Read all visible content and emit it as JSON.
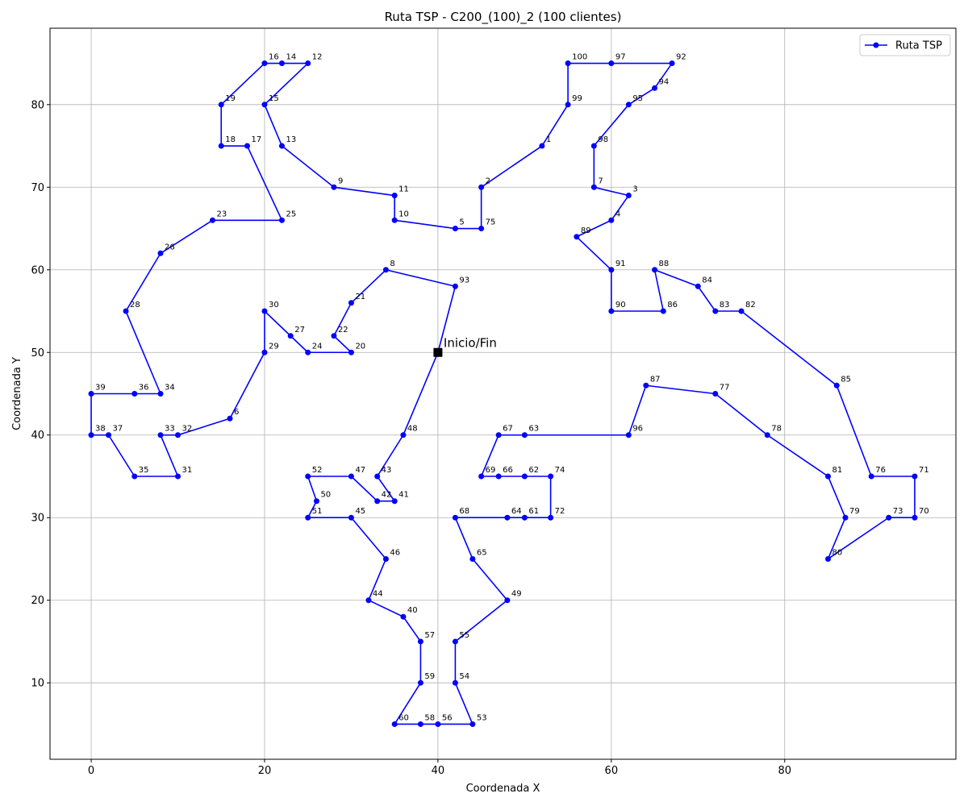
{
  "chart_data": {
    "type": "line",
    "title": "Ruta TSP - C200_(100)_2 (100 clientes)",
    "xlabel": "Coordenada X",
    "ylabel": "Coordenada Y",
    "xlim": [
      -4.75,
      99.75
    ],
    "ylim": [
      0.75,
      89.25
    ],
    "xticks": [
      0,
      20,
      40,
      60,
      80
    ],
    "yticks": [
      10,
      20,
      30,
      40,
      50,
      60,
      70,
      80
    ],
    "grid": true,
    "legend": {
      "position": "top-right",
      "entries": [
        "Ruta TSP"
      ]
    },
    "colors": {
      "route": "#0000ff",
      "depot": "#000000",
      "grid": "#b0b0b0"
    },
    "depot": {
      "x": 40,
      "y": 50,
      "label": "Inicio/Fin"
    },
    "series": [
      {
        "name": "Ruta TSP",
        "points": [
          {
            "id": "",
            "x": 40,
            "y": 50
          },
          {
            "id": "93",
            "x": 42,
            "y": 58
          },
          {
            "id": "8",
            "x": 34,
            "y": 60
          },
          {
            "id": "21",
            "x": 30,
            "y": 56
          },
          {
            "id": "22",
            "x": 28,
            "y": 52
          },
          {
            "id": "20",
            "x": 30,
            "y": 50
          },
          {
            "id": "24",
            "x": 25,
            "y": 50
          },
          {
            "id": "27",
            "x": 23,
            "y": 52
          },
          {
            "id": "30",
            "x": 20,
            "y": 55
          },
          {
            "id": "29",
            "x": 20,
            "y": 50
          },
          {
            "id": "6",
            "x": 16,
            "y": 42
          },
          {
            "id": "32",
            "x": 10,
            "y": 40
          },
          {
            "id": "33",
            "x": 8,
            "y": 40
          },
          {
            "id": "31",
            "x": 10,
            "y": 35
          },
          {
            "id": "35",
            "x": 5,
            "y": 35
          },
          {
            "id": "37",
            "x": 2,
            "y": 40
          },
          {
            "id": "38",
            "x": 0,
            "y": 40
          },
          {
            "id": "39",
            "x": 0,
            "y": 45
          },
          {
            "id": "36",
            "x": 5,
            "y": 45
          },
          {
            "id": "34",
            "x": 8,
            "y": 45
          },
          {
            "id": "28",
            "x": 4,
            "y": 55
          },
          {
            "id": "26",
            "x": 8,
            "y": 62
          },
          {
            "id": "23",
            "x": 14,
            "y": 66
          },
          {
            "id": "25",
            "x": 22,
            "y": 66
          },
          {
            "id": "17",
            "x": 18,
            "y": 75
          },
          {
            "id": "18",
            "x": 15,
            "y": 75
          },
          {
            "id": "19",
            "x": 15,
            "y": 80
          },
          {
            "id": "16",
            "x": 20,
            "y": 85
          },
          {
            "id": "14",
            "x": 22,
            "y": 85
          },
          {
            "id": "12",
            "x": 25,
            "y": 85
          },
          {
            "id": "15",
            "x": 20,
            "y": 80
          },
          {
            "id": "13",
            "x": 22,
            "y": 75
          },
          {
            "id": "9",
            "x": 28,
            "y": 70
          },
          {
            "id": "11",
            "x": 35,
            "y": 69
          },
          {
            "id": "10",
            "x": 35,
            "y": 66
          },
          {
            "id": "5",
            "x": 42,
            "y": 65
          },
          {
            "id": "75",
            "x": 45,
            "y": 65
          },
          {
            "id": "2",
            "x": 45,
            "y": 70
          },
          {
            "id": "1",
            "x": 52,
            "y": 75
          },
          {
            "id": "99",
            "x": 55,
            "y": 80
          },
          {
            "id": "100",
            "x": 55,
            "y": 85
          },
          {
            "id": "97",
            "x": 60,
            "y": 85
          },
          {
            "id": "92",
            "x": 67,
            "y": 85
          },
          {
            "id": "94",
            "x": 65,
            "y": 82
          },
          {
            "id": "95",
            "x": 62,
            "y": 80
          },
          {
            "id": "98",
            "x": 58,
            "y": 75
          },
          {
            "id": "7",
            "x": 58,
            "y": 70
          },
          {
            "id": "3",
            "x": 62,
            "y": 69
          },
          {
            "id": "4",
            "x": 60,
            "y": 66
          },
          {
            "id": "89",
            "x": 56,
            "y": 64
          },
          {
            "id": "91",
            "x": 60,
            "y": 60
          },
          {
            "id": "90",
            "x": 60,
            "y": 55
          },
          {
            "id": "86",
            "x": 66,
            "y": 55
          },
          {
            "id": "88",
            "x": 65,
            "y": 60
          },
          {
            "id": "84",
            "x": 70,
            "y": 58
          },
          {
            "id": "83",
            "x": 72,
            "y": 55
          },
          {
            "id": "82",
            "x": 75,
            "y": 55
          },
          {
            "id": "85",
            "x": 86,
            "y": 46
          },
          {
            "id": "76",
            "x": 90,
            "y": 35
          },
          {
            "id": "71",
            "x": 95,
            "y": 35
          },
          {
            "id": "70",
            "x": 95,
            "y": 30
          },
          {
            "id": "73",
            "x": 92,
            "y": 30
          },
          {
            "id": "80",
            "x": 85,
            "y": 25
          },
          {
            "id": "79",
            "x": 87,
            "y": 30
          },
          {
            "id": "81",
            "x": 85,
            "y": 35
          },
          {
            "id": "78",
            "x": 78,
            "y": 40
          },
          {
            "id": "77",
            "x": 72,
            "y": 45
          },
          {
            "id": "87",
            "x": 64,
            "y": 46
          },
          {
            "id": "96",
            "x": 62,
            "y": 40
          },
          {
            "id": "63",
            "x": 50,
            "y": 40
          },
          {
            "id": "67",
            "x": 47,
            "y": 40
          },
          {
            "id": "69",
            "x": 45,
            "y": 35
          },
          {
            "id": "66",
            "x": 47,
            "y": 35
          },
          {
            "id": "62",
            "x": 50,
            "y": 35
          },
          {
            "id": "74",
            "x": 53,
            "y": 35
          },
          {
            "id": "72",
            "x": 53,
            "y": 30
          },
          {
            "id": "61",
            "x": 50,
            "y": 30
          },
          {
            "id": "64",
            "x": 48,
            "y": 30
          },
          {
            "id": "68",
            "x": 42,
            "y": 30
          },
          {
            "id": "65",
            "x": 44,
            "y": 25
          },
          {
            "id": "49",
            "x": 48,
            "y": 20
          },
          {
            "id": "55",
            "x": 42,
            "y": 15
          },
          {
            "id": "54",
            "x": 42,
            "y": 10
          },
          {
            "id": "53",
            "x": 44,
            "y": 5
          },
          {
            "id": "56",
            "x": 40,
            "y": 5
          },
          {
            "id": "58",
            "x": 38,
            "y": 5
          },
          {
            "id": "60",
            "x": 35,
            "y": 5
          },
          {
            "id": "59",
            "x": 38,
            "y": 10
          },
          {
            "id": "57",
            "x": 38,
            "y": 15
          },
          {
            "id": "40",
            "x": 36,
            "y": 18
          },
          {
            "id": "44",
            "x": 32,
            "y": 20
          },
          {
            "id": "46",
            "x": 34,
            "y": 25
          },
          {
            "id": "45",
            "x": 30,
            "y": 30
          },
          {
            "id": "51",
            "x": 25,
            "y": 30
          },
          {
            "id": "50",
            "x": 26,
            "y": 32
          },
          {
            "id": "52",
            "x": 25,
            "y": 35
          },
          {
            "id": "47",
            "x": 30,
            "y": 35
          },
          {
            "id": "42",
            "x": 33,
            "y": 32
          },
          {
            "id": "41",
            "x": 35,
            "y": 32
          },
          {
            "id": "43",
            "x": 33,
            "y": 35
          },
          {
            "id": "48",
            "x": 36,
            "y": 40
          },
          {
            "id": "",
            "x": 40,
            "y": 50
          }
        ]
      }
    ]
  }
}
